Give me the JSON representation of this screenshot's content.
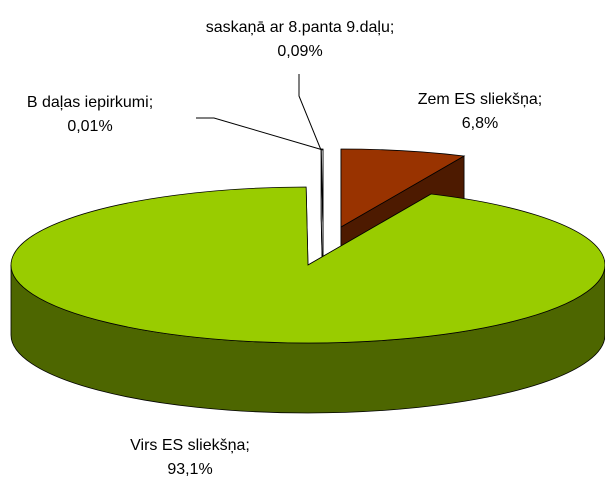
{
  "chart_data": {
    "type": "pie3d",
    "categories": [
      "Zem ES sliekšņa;",
      "Virs ES sliekšņa;",
      "B daļas iepirkumi;",
      "saskaņā ar 8.panta 9.daļu;"
    ],
    "values": [
      6.8,
      93.1,
      0.01,
      0.09
    ],
    "value_labels": [
      "6,8%",
      "93,1%",
      "0,01%",
      "0,09%"
    ],
    "colors": [
      "#993300",
      "#99cc00",
      "#ffffff",
      "#ffffff"
    ]
  }
}
